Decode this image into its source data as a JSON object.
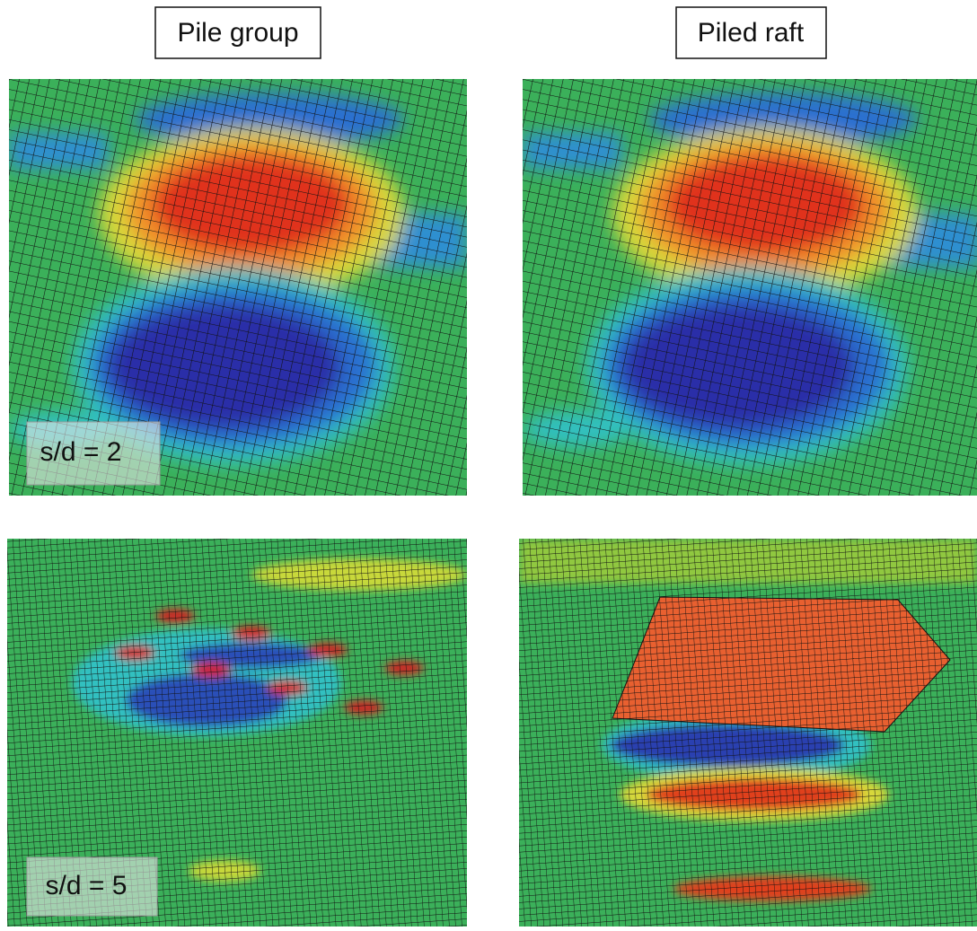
{
  "columns": [
    {
      "title": "Pile group"
    },
    {
      "title": "Piled raft"
    }
  ],
  "rows": [
    {
      "label": "s/d = 2"
    },
    {
      "label": "s/d = 5"
    }
  ]
}
